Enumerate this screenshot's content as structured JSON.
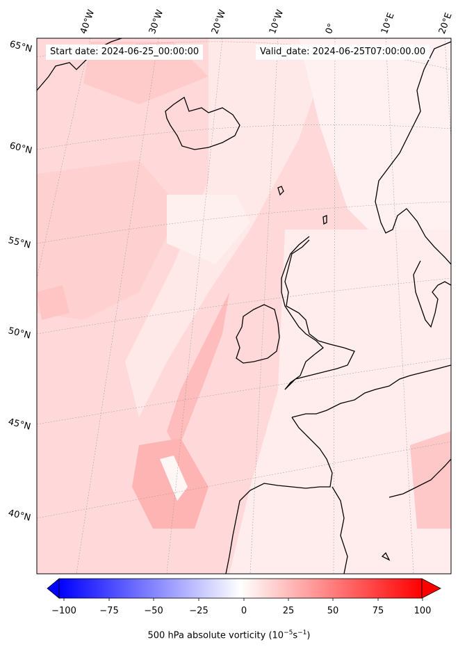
{
  "map": {
    "start_label": "Start date: 2024-06-25_00:00:00",
    "valid_label": "Valid_date: 2024-06-25T07:00:00.00",
    "lat_labels": [
      "65°N",
      "60°N",
      "55°N",
      "50°N",
      "45°N",
      "40°N"
    ],
    "lon_labels": [
      "40°W",
      "30°W",
      "20°W",
      "10°W",
      "0°",
      "10°E",
      "20°E"
    ]
  },
  "colorbar": {
    "ticks": [
      "−100",
      "−75",
      "−50",
      "−25",
      "0",
      "25",
      "50",
      "75",
      "100"
    ],
    "title": "500 hPa absolute vorticity (10",
    "unit_sup1": "−5",
    "unit_mid": "s",
    "unit_sup2": "−1",
    "title_end": ")",
    "colors": {
      "min": "#0000ff",
      "mid": "#ffffff",
      "max": "#ff0000"
    }
  }
}
